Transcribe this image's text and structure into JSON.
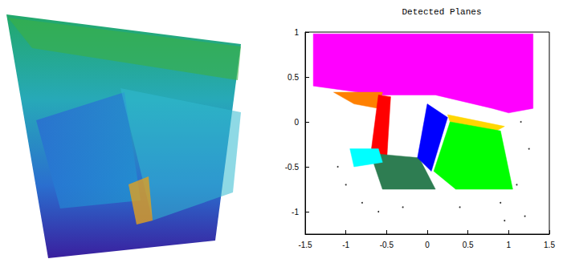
{
  "chart_data": {
    "type": "scatter",
    "title": "Detected Planes",
    "xlim": [
      -1.5,
      1.5
    ],
    "xticks": [
      -1.5,
      -1,
      -0.5,
      0,
      0.5,
      1,
      1.5
    ],
    "ylim": [
      -1.25,
      1
    ],
    "yticks": [
      -1,
      -0.5,
      0,
      0.5,
      1
    ],
    "grid": false,
    "series": [
      {
        "type": "polygon",
        "color": "#ff00ff",
        "points": [
          [
            -1.4,
            0.98
          ],
          [
            1.3,
            0.98
          ],
          [
            1.3,
            0.15
          ],
          [
            1.0,
            0.1
          ],
          [
            0.8,
            0.15
          ],
          [
            0.1,
            0.3
          ],
          [
            -0.6,
            0.3
          ],
          [
            -1.4,
            0.4
          ]
        ]
      },
      {
        "type": "polygon",
        "color": "#ff8000",
        "points": [
          [
            -1.15,
            0.33
          ],
          [
            -0.55,
            0.33
          ],
          [
            -0.6,
            0.15
          ],
          [
            -0.9,
            0.2
          ]
        ]
      },
      {
        "type": "polygon",
        "color": "#ff0000",
        "points": [
          [
            -0.6,
            0.3
          ],
          [
            -0.45,
            0.28
          ],
          [
            -0.5,
            -0.45
          ],
          [
            -0.7,
            -0.4
          ]
        ]
      },
      {
        "type": "polygon",
        "color": "#2e7d52",
        "points": [
          [
            -0.7,
            -0.35
          ],
          [
            -0.1,
            -0.4
          ],
          [
            0.1,
            -0.75
          ],
          [
            -0.55,
            -0.75
          ]
        ]
      },
      {
        "type": "polygon",
        "color": "#00ffff",
        "points": [
          [
            -0.95,
            -0.3
          ],
          [
            -0.6,
            -0.3
          ],
          [
            -0.55,
            -0.45
          ],
          [
            -0.9,
            -0.5
          ]
        ]
      },
      {
        "type": "polygon",
        "color": "#ffd700",
        "points": [
          [
            0.25,
            0.08
          ],
          [
            0.95,
            -0.05
          ],
          [
            0.85,
            -0.1
          ],
          [
            0.28,
            0.0
          ]
        ]
      },
      {
        "type": "polygon",
        "color": "#00ff00",
        "points": [
          [
            0.28,
            0.0
          ],
          [
            0.9,
            -0.1
          ],
          [
            1.05,
            -0.75
          ],
          [
            0.35,
            -0.75
          ],
          [
            0.08,
            -0.55
          ]
        ]
      },
      {
        "type": "polygon",
        "color": "#0000ff",
        "points": [
          [
            0.0,
            0.2
          ],
          [
            0.25,
            0.05
          ],
          [
            0.05,
            -0.55
          ],
          [
            -0.12,
            -0.4
          ]
        ]
      },
      {
        "type": "scatter",
        "color": "#000000",
        "marker": "dot",
        "points": [
          [
            -1.1,
            -0.5
          ],
          [
            -1.0,
            -0.7
          ],
          [
            -0.8,
            -0.9
          ],
          [
            -0.3,
            -0.95
          ],
          [
            0.4,
            -0.95
          ],
          [
            0.9,
            -0.9
          ],
          [
            1.1,
            -0.7
          ],
          [
            1.2,
            -1.05
          ],
          [
            0.95,
            -1.1
          ],
          [
            -0.6,
            -1.0
          ],
          [
            1.15,
            0.0
          ],
          [
            1.25,
            -0.3
          ]
        ]
      }
    ]
  }
}
